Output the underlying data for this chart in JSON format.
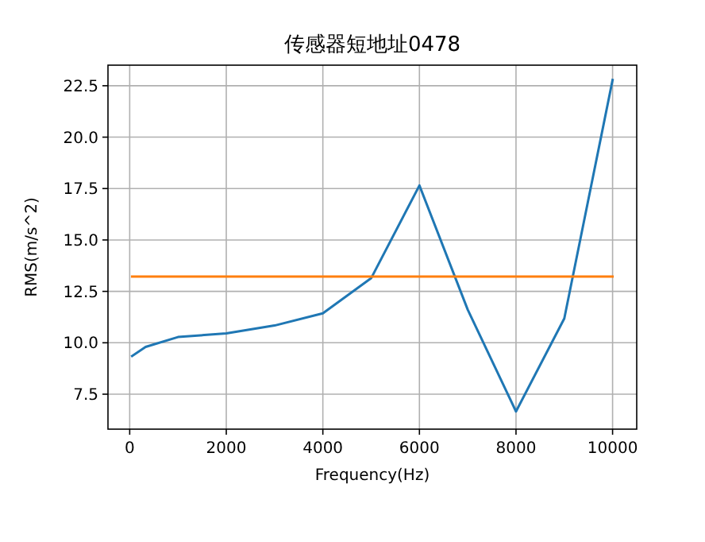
{
  "chart_data": {
    "type": "line",
    "title": "传感器短地址0478",
    "xlabel": "Frequency(Hz)",
    "ylabel": "RMS(m/s^2)",
    "xlim": [
      -450,
      10500
    ],
    "ylim": [
      5.8,
      23.5
    ],
    "xticks": [
      0,
      2000,
      4000,
      6000,
      8000,
      10000
    ],
    "yticks": [
      {
        "value": 7.5,
        "label": "7.5"
      },
      {
        "value": 10,
        "label": "10.0"
      },
      {
        "value": 12.5,
        "label": "12.5"
      },
      {
        "value": 15,
        "label": "15.0"
      },
      {
        "value": 17.5,
        "label": "17.5"
      },
      {
        "value": 20,
        "label": "20.0"
      },
      {
        "value": 22.5,
        "label": "22.5"
      }
    ],
    "grid": true,
    "series": [
      {
        "color": "#1f77b4",
        "x": [
          50,
          330,
          1000,
          2000,
          3000,
          4000,
          5000,
          6000,
          7000,
          8000,
          9000,
          10000
        ],
        "values": [
          9.36,
          9.8,
          10.28,
          10.46,
          10.84,
          11.43,
          13.14,
          17.65,
          11.61,
          6.66,
          11.18,
          22.78
        ]
      },
      {
        "color": "#ff7f0e",
        "x": [
          50,
          10000
        ],
        "values": [
          13.22,
          13.22
        ]
      }
    ]
  }
}
